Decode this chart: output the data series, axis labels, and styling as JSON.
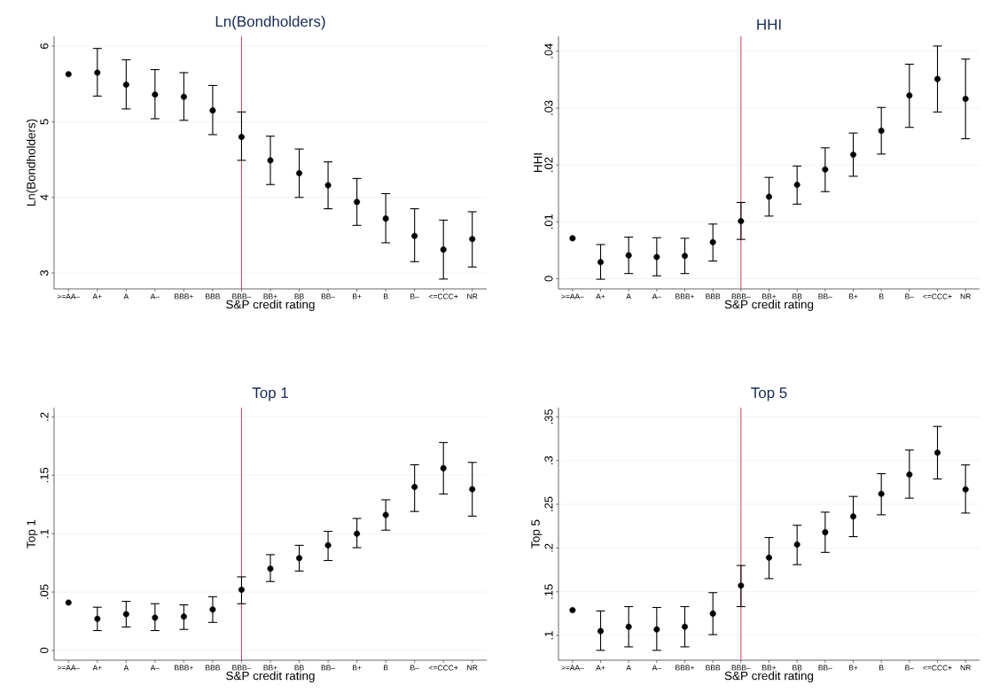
{
  "chart_data": [
    {
      "type": "scatter",
      "title": "Ln(Bondholders)",
      "xlabel": "S&P credit rating",
      "ylabel": "Ln(Bondholders)",
      "categories": [
        ">=AA–",
        "A+",
        "A",
        "A–",
        "BBB+",
        "BBB",
        "BBB–",
        "BB+",
        "BB",
        "BB–",
        "B+",
        "B",
        "B–",
        "<=CCC+",
        "NR"
      ],
      "values": [
        5.63,
        5.65,
        5.49,
        5.36,
        5.33,
        5.15,
        4.8,
        4.49,
        4.32,
        4.16,
        3.94,
        3.72,
        3.49,
        3.31,
        3.45
      ],
      "errors": [
        null,
        [
          5.34,
          5.97
        ],
        [
          5.17,
          5.82
        ],
        [
          5.04,
          5.69
        ],
        [
          5.02,
          5.65
        ],
        [
          4.83,
          5.48
        ],
        [
          4.49,
          5.13
        ],
        [
          4.17,
          4.81
        ],
        [
          4.0,
          4.64
        ],
        [
          3.85,
          4.47
        ],
        [
          3.63,
          4.25
        ],
        [
          3.4,
          4.05
        ],
        [
          3.15,
          3.85
        ],
        [
          2.92,
          3.7
        ],
        [
          3.08,
          3.81
        ]
      ],
      "color": "#000000",
      "marker": "circle",
      "grid": "y",
      "ylim": [
        2.79,
        6.13
      ],
      "yticks": [
        3,
        4,
        5,
        6
      ],
      "ref_lines": [
        {
          "axis": "x",
          "value": "BBB–",
          "color": "#c8102e"
        }
      ]
    },
    {
      "type": "scatter",
      "title": "HHI",
      "xlabel": "S&P credit rating",
      "ylabel": "HHI",
      "categories": [
        ">=AA–",
        "A+",
        "A",
        "A–",
        "BBB+",
        "BBB",
        "BBB–",
        "BB+",
        "BB",
        "BB–",
        "B+",
        "B",
        "B–",
        "<=CCC+",
        "NR"
      ],
      "values": [
        0.0071,
        0.0029,
        0.0041,
        0.0038,
        0.004,
        0.0064,
        0.0101,
        0.0144,
        0.0165,
        0.0192,
        0.0218,
        0.026,
        0.0322,
        0.0351,
        0.0316
      ],
      "errors": [
        null,
        [
          -0.0001,
          0.006
        ],
        [
          0.0009,
          0.0073
        ],
        [
          0.0005,
          0.0072
        ],
        [
          0.0009,
          0.0071
        ],
        [
          0.0031,
          0.0096
        ],
        [
          0.0069,
          0.0134
        ],
        [
          0.011,
          0.0178
        ],
        [
          0.0131,
          0.0198
        ],
        [
          0.0153,
          0.023
        ],
        [
          0.018,
          0.0256
        ],
        [
          0.0219,
          0.0301
        ],
        [
          0.0266,
          0.0377
        ],
        [
          0.0293,
          0.0409
        ],
        [
          0.0246,
          0.0386
        ]
      ],
      "color": "#000000",
      "marker": "circle",
      "grid": "y",
      "ylim": [
        -0.0018,
        0.0426
      ],
      "yticks": [
        {
          "value": 0,
          "label": "0"
        },
        {
          "value": 0.01,
          "label": ".01"
        },
        {
          "value": 0.02,
          "label": ".02"
        },
        {
          "value": 0.03,
          "label": ".03"
        },
        {
          "value": 0.04,
          "label": ".04"
        }
      ],
      "ref_lines": [
        {
          "axis": "x",
          "value": "BBB–",
          "color": "#c8102e"
        }
      ]
    },
    {
      "type": "scatter",
      "title": "Top 1",
      "xlabel": "S&P credit rating",
      "ylabel": "Top 1",
      "categories": [
        ">=AA–",
        "A+",
        "A",
        "A–",
        "BBB+",
        "BBB",
        "BBB–",
        "BB+",
        "BB",
        "BB–",
        "B+",
        "B",
        "B–",
        "<=CCC+",
        "NR"
      ],
      "values": [
        0.041,
        0.027,
        0.031,
        0.028,
        0.029,
        0.035,
        0.052,
        0.07,
        0.079,
        0.09,
        0.1,
        0.116,
        0.14,
        0.156,
        0.138
      ],
      "errors": [
        null,
        [
          0.017,
          0.037
        ],
        [
          0.02,
          0.042
        ],
        [
          0.017,
          0.04
        ],
        [
          0.018,
          0.039
        ],
        [
          0.024,
          0.046
        ],
        [
          0.04,
          0.063
        ],
        [
          0.059,
          0.082
        ],
        [
          0.068,
          0.09
        ],
        [
          0.077,
          0.102
        ],
        [
          0.088,
          0.113
        ],
        [
          0.103,
          0.129
        ],
        [
          0.119,
          0.159
        ],
        [
          0.134,
          0.178
        ],
        [
          0.115,
          0.161
        ]
      ],
      "color": "#000000",
      "marker": "circle",
      "grid": "y",
      "ylim": [
        -0.0084,
        0.2079
      ],
      "yticks": [
        {
          "value": 0,
          "label": "0"
        },
        {
          "value": 0.05,
          "label": ".05"
        },
        {
          "value": 0.1,
          "label": ".1"
        },
        {
          "value": 0.15,
          "label": ".15"
        },
        {
          "value": 0.2,
          "label": ".2"
        }
      ],
      "ref_lines": [
        {
          "axis": "x",
          "value": "BBB–",
          "color": "#c8102e"
        }
      ]
    },
    {
      "type": "scatter",
      "title": "Top 5",
      "xlabel": "S&P credit rating",
      "ylabel": "Top 5",
      "categories": [
        ">=AA–",
        "A+",
        "A",
        "A–",
        "BBB+",
        "BBB",
        "BBB–",
        "BB+",
        "BB",
        "BB–",
        "B+",
        "B",
        "B–",
        "<=CCC+",
        "NR"
      ],
      "values": [
        0.129,
        0.105,
        0.11,
        0.107,
        0.11,
        0.125,
        0.157,
        0.189,
        0.204,
        0.218,
        0.236,
        0.262,
        0.284,
        0.309,
        0.267
      ],
      "errors": [
        null,
        [
          0.083,
          0.128
        ],
        [
          0.087,
          0.133
        ],
        [
          0.083,
          0.132
        ],
        [
          0.087,
          0.133
        ],
        [
          0.101,
          0.149
        ],
        [
          0.133,
          0.18
        ],
        [
          0.165,
          0.212
        ],
        [
          0.181,
          0.226
        ],
        [
          0.195,
          0.241
        ],
        [
          0.213,
          0.259
        ],
        [
          0.238,
          0.285
        ],
        [
          0.257,
          0.312
        ],
        [
          0.279,
          0.339
        ],
        [
          0.24,
          0.295
        ]
      ],
      "color": "#000000",
      "marker": "circle",
      "grid": "y",
      "ylim": [
        0.0717,
        0.3605
      ],
      "yticks": [
        {
          "value": 0.1,
          "label": ".1"
        },
        {
          "value": 0.15,
          "label": ".15"
        },
        {
          "value": 0.2,
          "label": ".2"
        },
        {
          "value": 0.25,
          "label": ".25"
        },
        {
          "value": 0.3,
          "label": ".3"
        },
        {
          "value": 0.35,
          "label": ".35"
        }
      ],
      "ref_lines": [
        {
          "axis": "x",
          "value": "BBB–",
          "color": "#c8102e"
        }
      ]
    }
  ]
}
